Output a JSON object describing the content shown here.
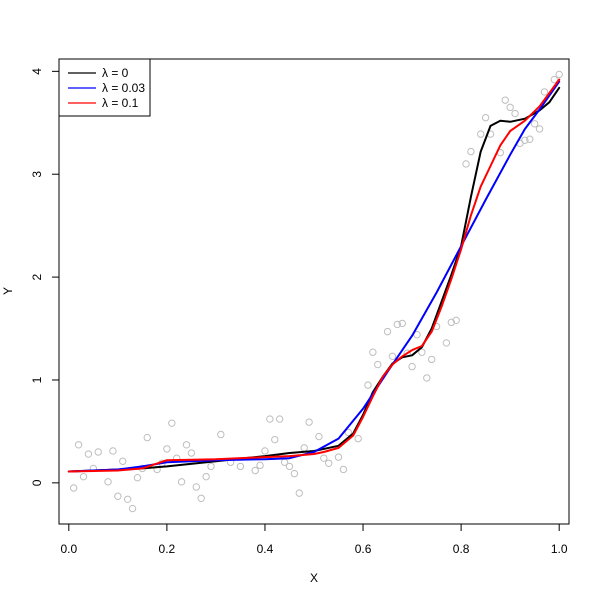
{
  "chart_data": {
    "type": "scatter",
    "title": "",
    "xlabel": "X",
    "ylabel": "Y",
    "xlim": [
      -0.02,
      1.02
    ],
    "ylim": [
      -0.4,
      4.12
    ],
    "xticks": [
      0.0,
      0.2,
      0.4,
      0.6,
      0.8,
      1.0
    ],
    "xtick_labels": [
      "0.0",
      "0.2",
      "0.4",
      "0.6",
      "0.8",
      "1.0"
    ],
    "yticks": [
      0,
      1,
      2,
      3,
      4
    ],
    "ytick_labels": [
      "0",
      "1",
      "2",
      "3",
      "4"
    ],
    "grid": false,
    "legend_position": "top-left",
    "points": {
      "color": "#bebebe",
      "x": [
        0.01,
        0.02,
        0.03,
        0.04,
        0.05,
        0.06,
        0.08,
        0.09,
        0.1,
        0.11,
        0.12,
        0.13,
        0.14,
        0.15,
        0.16,
        0.18,
        0.19,
        0.2,
        0.21,
        0.22,
        0.23,
        0.24,
        0.25,
        0.26,
        0.27,
        0.28,
        0.29,
        0.31,
        0.33,
        0.35,
        0.38,
        0.39,
        0.4,
        0.41,
        0.42,
        0.43,
        0.44,
        0.45,
        0.46,
        0.47,
        0.48,
        0.49,
        0.51,
        0.52,
        0.53,
        0.55,
        0.56,
        0.57,
        0.59,
        0.61,
        0.62,
        0.63,
        0.65,
        0.66,
        0.67,
        0.68,
        0.69,
        0.7,
        0.71,
        0.72,
        0.73,
        0.74,
        0.75,
        0.77,
        0.78,
        0.79,
        0.81,
        0.82,
        0.84,
        0.85,
        0.86,
        0.88,
        0.89,
        0.9,
        0.91,
        0.92,
        0.93,
        0.94,
        0.95,
        0.96,
        0.97,
        0.99,
        1.0
      ],
      "y": [
        -0.05,
        0.37,
        0.06,
        0.28,
        0.14,
        0.3,
        0.01,
        0.31,
        -0.13,
        0.21,
        -0.16,
        -0.25,
        0.05,
        0.14,
        0.44,
        0.13,
        0.19,
        0.33,
        0.58,
        0.24,
        0.01,
        0.37,
        0.29,
        -0.04,
        -0.15,
        0.06,
        0.16,
        0.47,
        0.2,
        0.16,
        0.12,
        0.17,
        0.31,
        0.62,
        0.42,
        0.62,
        0.2,
        0.16,
        0.09,
        -0.1,
        0.34,
        0.59,
        0.45,
        0.24,
        0.19,
        0.25,
        0.13,
        0.49,
        0.43,
        0.95,
        1.27,
        1.15,
        1.47,
        1.23,
        1.54,
        1.55,
        1.26,
        1.13,
        1.44,
        1.27,
        1.02,
        1.2,
        1.52,
        1.36,
        1.56,
        1.58,
        3.1,
        3.22,
        3.39,
        3.55,
        3.39,
        3.21,
        3.72,
        3.65,
        3.59,
        3.3,
        3.33,
        3.34,
        3.49,
        3.44,
        3.8,
        3.92,
        3.97
      ]
    },
    "series": [
      {
        "name": "λ = 0",
        "color": "#000000",
        "x": [
          0.0,
          0.1,
          0.15,
          0.2,
          0.3,
          0.4,
          0.45,
          0.5,
          0.55,
          0.58,
          0.6,
          0.62,
          0.64,
          0.66,
          0.68,
          0.7,
          0.72,
          0.74,
          0.76,
          0.78,
          0.8,
          0.82,
          0.84,
          0.86,
          0.88,
          0.9,
          0.93,
          0.96,
          0.98,
          1.0
        ],
        "y": [
          0.11,
          0.13,
          0.14,
          0.16,
          0.21,
          0.26,
          0.29,
          0.31,
          0.36,
          0.48,
          0.66,
          0.88,
          1.03,
          1.16,
          1.22,
          1.24,
          1.32,
          1.5,
          1.76,
          2.02,
          2.3,
          2.78,
          3.22,
          3.47,
          3.52,
          3.51,
          3.54,
          3.62,
          3.7,
          3.84
        ]
      },
      {
        "name": "λ = 0.03",
        "color": "#0000ff",
        "x": [
          0.0,
          0.1,
          0.15,
          0.2,
          0.3,
          0.4,
          0.45,
          0.5,
          0.55,
          0.6,
          0.65,
          0.7,
          0.75,
          0.8,
          0.85,
          0.9,
          0.93,
          0.96,
          1.0
        ],
        "y": [
          0.11,
          0.13,
          0.16,
          0.2,
          0.22,
          0.23,
          0.24,
          0.3,
          0.43,
          0.72,
          1.08,
          1.43,
          1.85,
          2.3,
          2.75,
          3.19,
          3.44,
          3.63,
          3.9
        ]
      },
      {
        "name": "λ = 0.1",
        "color": "#ff0000",
        "x": [
          0.0,
          0.1,
          0.15,
          0.2,
          0.3,
          0.4,
          0.45,
          0.5,
          0.52,
          0.55,
          0.58,
          0.6,
          0.62,
          0.64,
          0.66,
          0.68,
          0.7,
          0.72,
          0.74,
          0.76,
          0.78,
          0.8,
          0.82,
          0.84,
          0.86,
          0.88,
          0.9,
          0.93,
          0.96,
          1.0
        ],
        "y": [
          0.11,
          0.12,
          0.14,
          0.22,
          0.23,
          0.25,
          0.26,
          0.28,
          0.3,
          0.34,
          0.46,
          0.64,
          0.84,
          1.03,
          1.15,
          1.23,
          1.29,
          1.33,
          1.47,
          1.71,
          1.98,
          2.27,
          2.6,
          2.88,
          3.08,
          3.28,
          3.42,
          3.52,
          3.66,
          3.92
        ]
      }
    ]
  }
}
